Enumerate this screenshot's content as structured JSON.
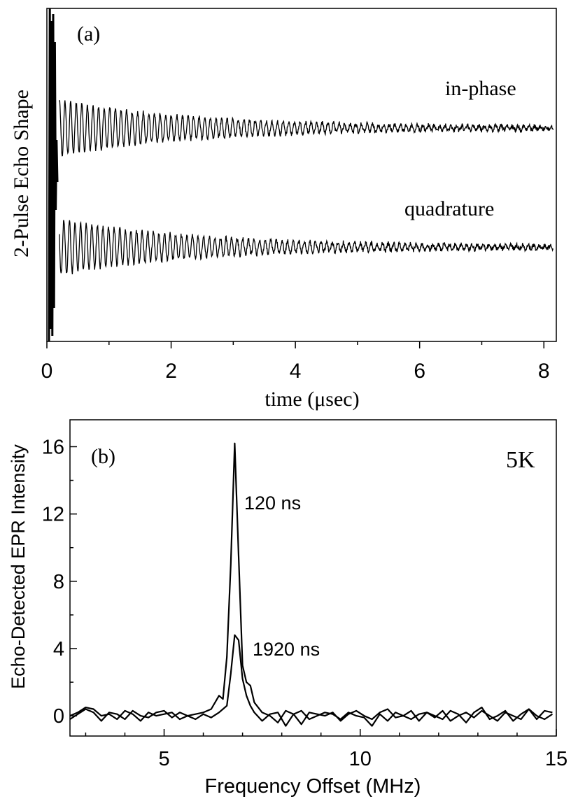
{
  "chart_data": [
    {
      "panel_label": "(a)",
      "type": "line",
      "xlabel": "time (μsec)",
      "ylabel": "2-Pulse Echo Shape",
      "xlim": [
        0,
        8.2
      ],
      "x_ticks": [
        "0",
        "2",
        "4",
        "6",
        "8"
      ],
      "y_ticks_labeled": false,
      "series": [
        {
          "name": "in-phase",
          "label": "in-phase",
          "oscillation_period_us": 0.09,
          "start_amplitude": 1.0,
          "decay_time_us": 2.2,
          "noise_level": 0.12
        },
        {
          "name": "quadrature",
          "label": "quadrature",
          "oscillation_period_us": 0.09,
          "start_amplitude": 1.0,
          "decay_time_us": 2.2,
          "noise_level": 0.12
        }
      ]
    },
    {
      "panel_label": "(b)",
      "annotation": "5K",
      "type": "line",
      "xlabel": "Frequency Offset (MHz)",
      "ylabel": "Echo-Detected EPR Intensity",
      "xlim": [
        2.6,
        15
      ],
      "ylim": [
        -1.2,
        17.6
      ],
      "x_ticks": [
        5,
        10,
        15
      ],
      "y_ticks": [
        0,
        4,
        8,
        12,
        16
      ],
      "series": [
        {
          "name": "120 ns",
          "label": "120 ns",
          "x": [
            2.6,
            2.8,
            3.0,
            3.2,
            3.4,
            3.6,
            3.8,
            4.0,
            4.2,
            4.4,
            4.6,
            4.8,
            5.0,
            5.2,
            5.4,
            5.6,
            5.8,
            6.0,
            6.2,
            6.4,
            6.5,
            6.6,
            6.7,
            6.8,
            6.9,
            7.0,
            7.1,
            7.2,
            7.3,
            7.5,
            7.7,
            7.9,
            8.1,
            8.3,
            8.5,
            8.7,
            8.9,
            9.1,
            9.3,
            9.5,
            9.7,
            9.9,
            10.1,
            10.3,
            10.5,
            10.7,
            10.9,
            11.1,
            11.3,
            11.5,
            11.7,
            11.9,
            12.1,
            12.3,
            12.5,
            12.7,
            12.9,
            13.1,
            13.3,
            13.5,
            13.7,
            13.9,
            14.1,
            14.3,
            14.5,
            14.7,
            14.9
          ],
          "y": [
            0.0,
            0.2,
            0.5,
            0.4,
            0.0,
            0.1,
            -0.2,
            0.3,
            0.1,
            -0.3,
            0.2,
            0.0,
            0.1,
            0.2,
            -0.2,
            0.0,
            0.1,
            0.2,
            0.4,
            1.2,
            1.0,
            3.5,
            9.0,
            16.2,
            9.5,
            3.0,
            2.0,
            1.8,
            0.8,
            0.2,
            0.0,
            -0.4,
            0.3,
            0.1,
            -0.5,
            0.2,
            0.1,
            0.0,
            0.2,
            -0.3,
            0.1,
            0.3,
            0.0,
            -0.2,
            0.2,
            0.4,
            -0.1,
            0.0,
            0.3,
            -0.3,
            0.2,
            0.0,
            -0.2,
            0.3,
            0.1,
            -0.4,
            0.2,
            0.5,
            -0.2,
            0.0,
            0.3,
            -0.3,
            0.1,
            0.4,
            -0.2,
            0.3,
            0.2
          ]
        },
        {
          "name": "1920 ns",
          "label": "1920 ns",
          "x": [
            2.6,
            2.8,
            3.0,
            3.2,
            3.4,
            3.6,
            3.8,
            4.0,
            4.2,
            4.4,
            4.6,
            4.8,
            5.0,
            5.2,
            5.4,
            5.6,
            5.8,
            6.0,
            6.2,
            6.4,
            6.5,
            6.6,
            6.7,
            6.8,
            6.9,
            7.0,
            7.1,
            7.2,
            7.3,
            7.5,
            7.7,
            7.9,
            8.1,
            8.3,
            8.5,
            8.7,
            8.9,
            9.1,
            9.3,
            9.5,
            9.7,
            9.9,
            10.1,
            10.3,
            10.5,
            10.7,
            10.9,
            11.1,
            11.3,
            11.5,
            11.7,
            11.9,
            12.1,
            12.3,
            12.5,
            12.7,
            12.9,
            13.1,
            13.3,
            13.5,
            13.7,
            13.9,
            14.1,
            14.3,
            14.5,
            14.7,
            14.9
          ],
          "y": [
            -0.2,
            0.1,
            0.4,
            0.2,
            -0.3,
            0.2,
            0.1,
            -0.2,
            0.3,
            0.0,
            -0.1,
            0.2,
            0.3,
            -0.1,
            0.2,
            0.0,
            -0.2,
            0.1,
            -0.1,
            0.2,
            0.4,
            0.6,
            2.5,
            4.8,
            4.5,
            2.2,
            1.2,
            0.6,
            0.2,
            -0.3,
            0.1,
            0.2,
            -0.6,
            0.1,
            0.3,
            -0.2,
            0.0,
            0.2,
            0.1,
            -0.2,
            0.2,
            0.0,
            -0.1,
            -0.6,
            0.1,
            -0.3,
            0.2,
            0.0,
            -0.2,
            0.1,
            0.2,
            -0.1,
            0.3,
            -0.3,
            0.0,
            0.2,
            -0.1,
            0.3,
            0.0,
            -0.3,
            0.2,
            0.0,
            -0.2,
            0.4,
            0.0,
            -0.2,
            0.1
          ]
        }
      ]
    }
  ]
}
